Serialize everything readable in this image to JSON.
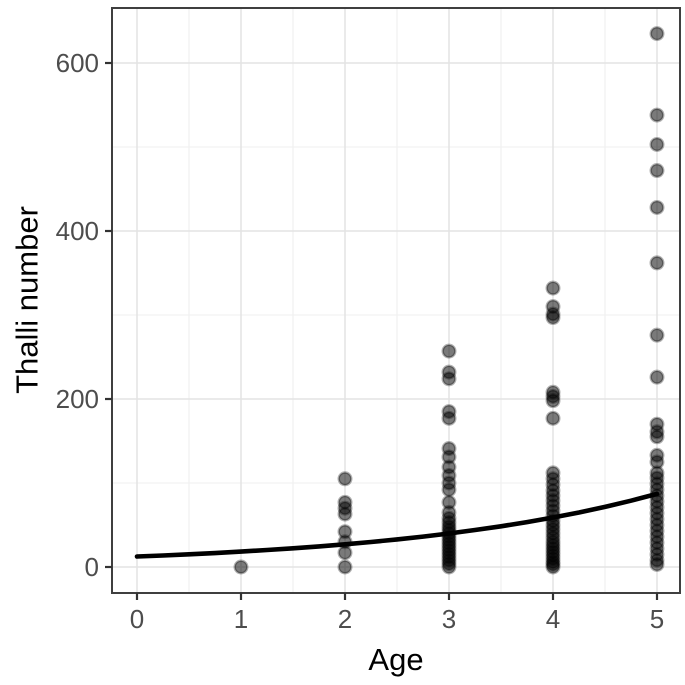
{
  "figure": {
    "background": "#ffffff"
  },
  "chart_data": {
    "type": "scatter",
    "title": "",
    "xlabel": "Age",
    "ylabel": "Thalli number",
    "x_ticks": [
      0,
      1,
      2,
      3,
      4,
      5
    ],
    "y_ticks": [
      0,
      200,
      400,
      600
    ],
    "x_minor_gridlines": [
      0.5,
      1.5,
      2.5,
      3.5,
      4.5
    ],
    "y_minor_gridlines": [
      100,
      300,
      500
    ],
    "xlim": [
      -0.25,
      5.22
    ],
    "ylim": [
      -31,
      665
    ],
    "grid": "on",
    "legend_position": "none",
    "series": [
      {
        "name": "observed-thalli-counts",
        "type": "scatter",
        "points": [
          [
            1,
            0
          ],
          [
            2,
            105
          ],
          [
            2,
            77
          ],
          [
            2,
            70
          ],
          [
            2,
            63
          ],
          [
            2,
            42
          ],
          [
            2,
            30
          ],
          [
            2,
            17
          ],
          [
            2,
            0
          ],
          [
            3,
            257
          ],
          [
            3,
            232
          ],
          [
            3,
            224
          ],
          [
            3,
            185
          ],
          [
            3,
            177
          ],
          [
            3,
            141
          ],
          [
            3,
            131
          ],
          [
            3,
            119
          ],
          [
            3,
            109
          ],
          [
            3,
            100
          ],
          [
            3,
            92
          ],
          [
            3,
            77
          ],
          [
            3,
            65
          ],
          [
            3,
            58
          ],
          [
            3,
            53
          ],
          [
            3,
            48
          ],
          [
            3,
            44
          ],
          [
            3,
            40
          ],
          [
            3,
            36
          ],
          [
            3,
            32
          ],
          [
            3,
            28
          ],
          [
            3,
            24
          ],
          [
            3,
            20
          ],
          [
            3,
            16
          ],
          [
            3,
            12
          ],
          [
            3,
            8
          ],
          [
            3,
            4
          ],
          [
            3,
            0
          ],
          [
            4,
            332
          ],
          [
            4,
            310
          ],
          [
            4,
            301
          ],
          [
            4,
            297
          ],
          [
            4,
            208
          ],
          [
            4,
            203
          ],
          [
            4,
            198
          ],
          [
            4,
            177
          ],
          [
            4,
            112
          ],
          [
            4,
            105
          ],
          [
            4,
            98
          ],
          [
            4,
            91
          ],
          [
            4,
            85
          ],
          [
            4,
            79
          ],
          [
            4,
            73
          ],
          [
            4,
            67
          ],
          [
            4,
            61
          ],
          [
            4,
            55
          ],
          [
            4,
            50
          ],
          [
            4,
            45
          ],
          [
            4,
            40
          ],
          [
            4,
            35
          ],
          [
            4,
            30
          ],
          [
            4,
            26
          ],
          [
            4,
            22
          ],
          [
            4,
            18
          ],
          [
            4,
            14
          ],
          [
            4,
            10
          ],
          [
            4,
            6
          ],
          [
            4,
            3
          ],
          [
            4,
            0
          ],
          [
            5,
            635
          ],
          [
            5,
            538
          ],
          [
            5,
            503
          ],
          [
            5,
            472
          ],
          [
            5,
            428
          ],
          [
            5,
            362
          ],
          [
            5,
            276
          ],
          [
            5,
            226
          ],
          [
            5,
            170
          ],
          [
            5,
            161
          ],
          [
            5,
            155
          ],
          [
            5,
            133
          ],
          [
            5,
            125
          ],
          [
            5,
            112
          ],
          [
            5,
            106
          ],
          [
            5,
            99
          ],
          [
            5,
            92
          ],
          [
            5,
            85
          ],
          [
            5,
            78
          ],
          [
            5,
            71
          ],
          [
            5,
            64
          ],
          [
            5,
            57
          ],
          [
            5,
            50
          ],
          [
            5,
            43
          ],
          [
            5,
            36
          ],
          [
            5,
            29
          ],
          [
            5,
            22
          ],
          [
            5,
            15
          ],
          [
            5,
            8
          ],
          [
            5,
            3
          ]
        ]
      },
      {
        "name": "model-fit-line",
        "type": "line",
        "x": [
          0,
          0.25,
          0.5,
          0.75,
          1,
          1.25,
          1.5,
          1.75,
          2,
          2.25,
          2.5,
          2.75,
          3,
          3.25,
          3.5,
          3.75,
          4,
          4.25,
          4.5,
          4.75,
          5
        ],
        "y": [
          12.5,
          13.7,
          15.1,
          16.6,
          18.3,
          20.2,
          22.3,
          24.5,
          27.0,
          29.8,
          32.8,
          36.2,
          39.9,
          44.0,
          48.5,
          53.4,
          58.9,
          64.9,
          71.6,
          78.9,
          87.0
        ]
      }
    ],
    "colors": {
      "point_fill": "#000000",
      "point_fill_opacity": 0.52,
      "point_stroke": "#000000",
      "point_stroke_opacity": 0.3,
      "fit_line": "#000000",
      "grid_major": "#e4e4e4",
      "grid_minor": "#efefef",
      "panel_border": "#3f3f3f",
      "tick_mark": "#333333",
      "tick_label": "#4d4d4d",
      "axis_title": "#000000",
      "panel_background": "#ffffff"
    }
  }
}
